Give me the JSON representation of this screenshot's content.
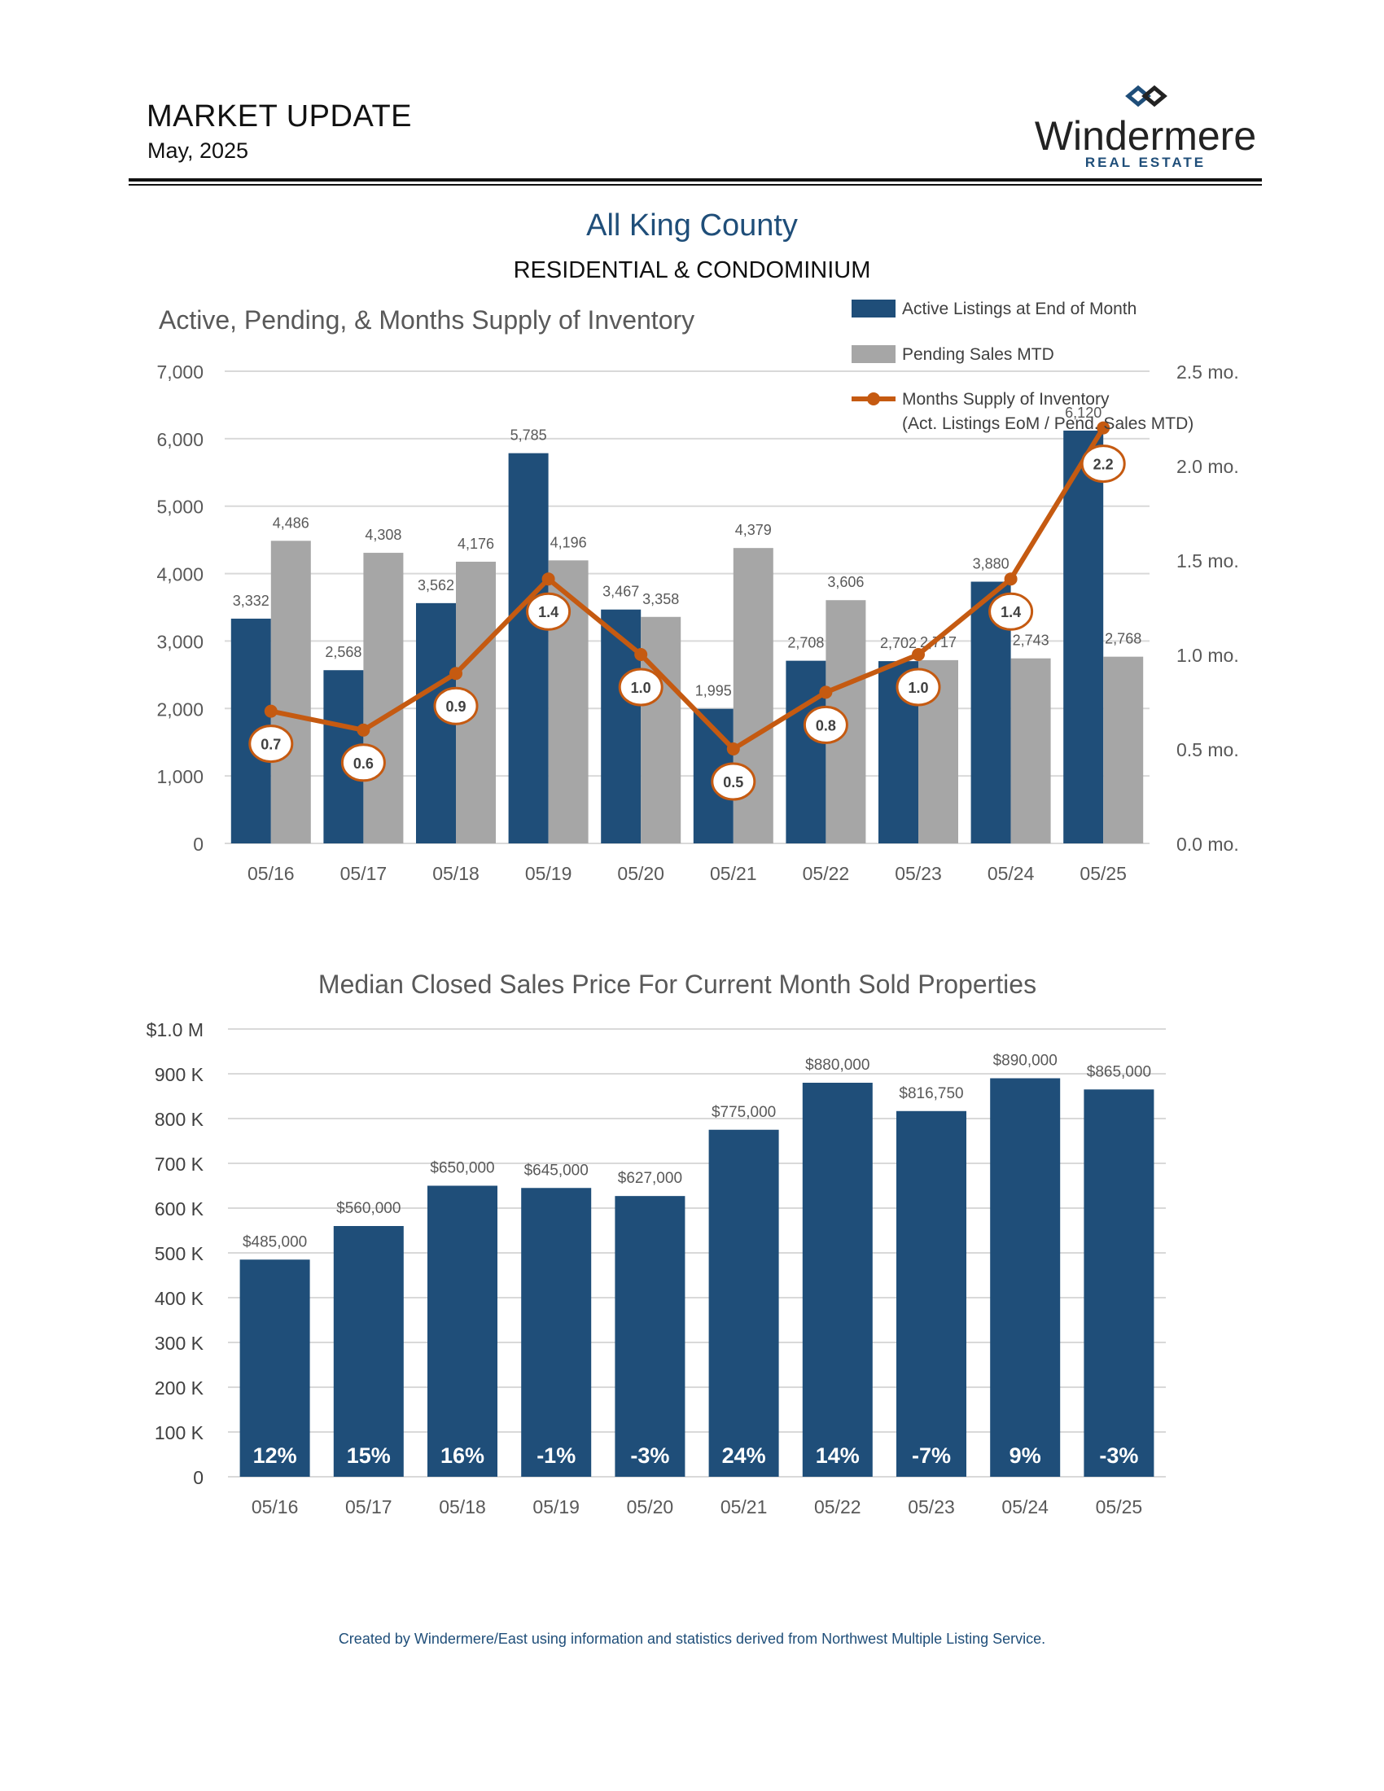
{
  "header": {
    "title": "MARKET UPDATE",
    "date": "May, 2025",
    "brand": "Windermere",
    "brand_sub": "REAL ESTATE"
  },
  "area": {
    "title": "All King County",
    "subtitle": "RESIDENTIAL & CONDOMINIUM"
  },
  "footer": "Created by Windermere/East using information and statistics derived from Northwest Multiple Listing Service.",
  "colors": {
    "active": "#1f4e79",
    "pending": "#a6a6a6",
    "supply": "#c55a11",
    "median": "#1f4e79",
    "grid": "#d9d9d9",
    "axis_text": "#595959"
  },
  "chart_data": [
    {
      "type": "bar",
      "title": "Active, Pending, & Months Supply of Inventory",
      "categories": [
        "05/16",
        "05/17",
        "05/18",
        "05/19",
        "05/20",
        "05/21",
        "05/22",
        "05/23",
        "05/24",
        "05/25"
      ],
      "series": [
        {
          "name": "Active Listings at End of Month",
          "type": "bar",
          "axis": "left",
          "values": [
            3332,
            2568,
            3562,
            5785,
            3467,
            1995,
            2708,
            2702,
            3880,
            6120
          ],
          "labels": [
            "3,332",
            "2,568",
            "3,562",
            "5,785",
            "3,467",
            "1,995",
            "2,708",
            "2,702",
            "3,880",
            "6,120"
          ]
        },
        {
          "name": "Pending Sales MTD",
          "type": "bar",
          "axis": "left",
          "values": [
            4486,
            4308,
            4176,
            4196,
            3358,
            4379,
            3606,
            2717,
            2743,
            2768
          ],
          "labels": [
            "4,486",
            "4,308",
            "4,176",
            "4,196",
            "3,358",
            "4,379",
            "3,606",
            "2,717",
            "2,743",
            "2,768"
          ]
        },
        {
          "name": "Months Supply of Inventory",
          "name_line2": "(Act. Listings EoM / Pend. Sales MTD)",
          "type": "line",
          "axis": "right",
          "values": [
            0.7,
            0.6,
            0.9,
            1.4,
            1.0,
            0.5,
            0.8,
            1.0,
            1.4,
            2.2
          ],
          "labels": [
            "0.7",
            "0.6",
            "0.9",
            "1.4",
            "1.0",
            "0.5",
            "0.8",
            "1.0",
            "1.4",
            "2.2"
          ]
        }
      ],
      "ylim": [
        0,
        7000
      ],
      "yticks": [
        "0",
        "1,000",
        "2,000",
        "3,000",
        "4,000",
        "5,000",
        "6,000",
        "7,000"
      ],
      "y2lim": [
        0,
        2.5
      ],
      "y2ticks": [
        "0.0 mo.",
        "0.5 mo.",
        "1.0 mo.",
        "1.5 mo.",
        "2.0 mo.",
        "2.5 mo."
      ],
      "grid": true,
      "legend": "top-right"
    },
    {
      "type": "bar",
      "title": "Median Closed Sales Price For Current Month Sold Properties",
      "categories": [
        "05/16",
        "05/17",
        "05/18",
        "05/19",
        "05/20",
        "05/21",
        "05/22",
        "05/23",
        "05/24",
        "05/25"
      ],
      "values": [
        485000,
        560000,
        650000,
        645000,
        627000,
        775000,
        880000,
        816750,
        890000,
        865000
      ],
      "labels": [
        "$485,000",
        "$560,000",
        "$650,000",
        "$645,000",
        "$627,000",
        "$775,000",
        "$880,000",
        "$816,750",
        "$890,000",
        "$865,000"
      ],
      "yoy_change": [
        "12%",
        "15%",
        "16%",
        "-1%",
        "-3%",
        "24%",
        "14%",
        "-7%",
        "9%",
        "-3%"
      ],
      "ylim": [
        0,
        1000000
      ],
      "yticks": [
        "0",
        "100 K",
        "200 K",
        "300 K",
        "400 K",
        "500 K",
        "600 K",
        "700 K",
        "800 K",
        "900 K",
        "$1.0 M"
      ],
      "grid": true
    }
  ]
}
